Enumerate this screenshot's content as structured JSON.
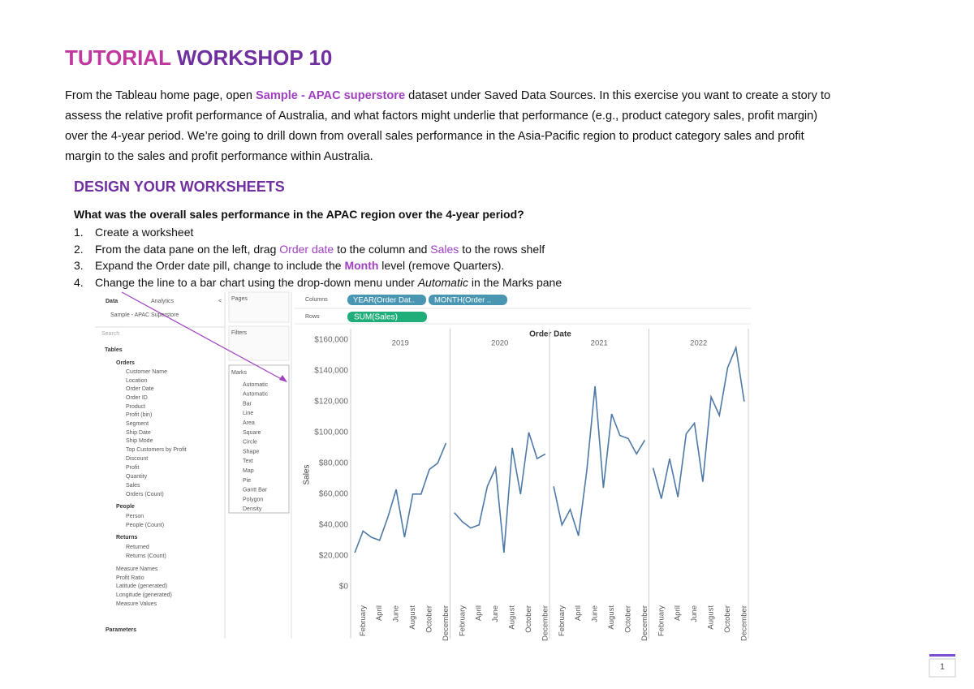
{
  "header": {
    "title_part1": "TUTORIAL",
    "title_part2": "WORKSHOP 10"
  },
  "intro": [
    [
      "From the Tableau home page, open ",
      "Sample - APAC superstore",
      " dataset under Saved Data Sources.  In this exercise you want to create a story to"
    ],
    [
      "assess the relative profit performance of Australia, and what factors might underlie that performance (e.g., product category sales, profit margin)"
    ],
    [
      "over the 4-year period.  We’re going to drill down from overall sales performance in the Asia-Pacific region to product category sales and profit"
    ],
    [
      "margin to the sales and profit performance within Australia."
    ]
  ],
  "section": {
    "heading": "DESIGN YOUR WORKSHEETS",
    "question": "What was the overall sales performance in the APAC region over the 4-year period?",
    "steps": [
      {
        "number": "1.",
        "parts": [
          "Create a worksheet"
        ]
      },
      {
        "number": "2.",
        "parts": [
          "From the data pane on the left, drag ",
          "Order date",
          " to the column and ",
          "Sales",
          " to the rows shelf"
        ]
      },
      {
        "number": "3.",
        "parts": [
          "Expand the Order date pill, change to include the ",
          "Month",
          " level (remove Quarters)."
        ]
      },
      {
        "number": "4.",
        "parts": [
          "Change the line to a bar chart using the drop-down menu under ",
          "Automatic",
          " in the Marks pane"
        ]
      }
    ]
  },
  "screenshot": {
    "data_tab": "Data",
    "analytics_tab": "Analytics",
    "source": "Sample - APAC Superstore",
    "search": "Search",
    "tables": "Tables",
    "fields": [
      "Orders",
      "Customer Name",
      "Location",
      "Order Date",
      "Order ID",
      "Product",
      "Profit (bin)",
      "Segment",
      "Ship Date",
      "Ship Mode",
      "Top Customers by Profit",
      "Discount",
      "Profit",
      "Quantity",
      "Sales",
      "Orders (Count)",
      "People",
      "Person",
      "People (Count)",
      "Returns",
      "Returned",
      "Returns (Count)",
      "Measure Names",
      "Profit Ratio",
      "Latitude (generated)",
      "Longitude (generated)",
      "Measure Values"
    ],
    "parameters": "Parameters",
    "pages": "Pages",
    "filters": "Filters",
    "marks": "Marks",
    "mark_types": [
      "Automatic",
      "Automatic",
      "Bar",
      "Line",
      "Area",
      "Square",
      "Circle",
      "Shape",
      "Text",
      "Map",
      "Pie",
      "Gantt Bar",
      "Polygon",
      "Density"
    ],
    "columns_label": "Columns",
    "rows_label": "Rows",
    "column_pills": [
      "YEAR(Order Dat..",
      "MONTH(Order .."
    ],
    "row_pill": "SUM(Sales)"
  },
  "chart_data": {
    "type": "line",
    "title": "Order Date",
    "y_label": "Sales",
    "color": "#4e79a7",
    "categories": [
      null,
      "February",
      null,
      "April",
      null,
      "June",
      null,
      "August",
      null,
      "October",
      null,
      "December"
    ],
    "panels": [
      {
        "label": "2019",
        "values": [
          22000,
          36000,
          32000,
          30000,
          45000,
          63000,
          32000,
          60000,
          60000,
          76000,
          80000,
          93000
        ]
      },
      {
        "label": "2020",
        "values": [
          48000,
          42000,
          38000,
          40000,
          65000,
          77000,
          22000,
          90000,
          60000,
          100000,
          83000,
          86000
        ]
      },
      {
        "label": "2021",
        "values": [
          65000,
          40000,
          50000,
          33000,
          75000,
          130000,
          64000,
          112000,
          98000,
          96000,
          86000,
          95000
        ]
      },
      {
        "label": "2022",
        "values": [
          77000,
          57000,
          83000,
          58000,
          99000,
          106000,
          68000,
          123000,
          111000,
          142000,
          155000,
          120000
        ]
      }
    ],
    "ylim": [
      -4000,
      174000
    ],
    "yticks": [
      {
        "value": 0,
        "label": "$0"
      },
      {
        "value": 20000,
        "label": "$20,000"
      },
      {
        "value": 40000,
        "label": "$40,000"
      },
      {
        "value": 60000,
        "label": "$60,000"
      },
      {
        "value": 80000,
        "label": "$80,000"
      },
      {
        "value": 100000,
        "label": "$100,000"
      },
      {
        "value": 120000,
        "label": "$120,000"
      },
      {
        "value": 140000,
        "label": "$140,000"
      },
      {
        "value": 160000,
        "label": "$160,000"
      }
    ]
  },
  "footer": {
    "page_number": "1"
  }
}
